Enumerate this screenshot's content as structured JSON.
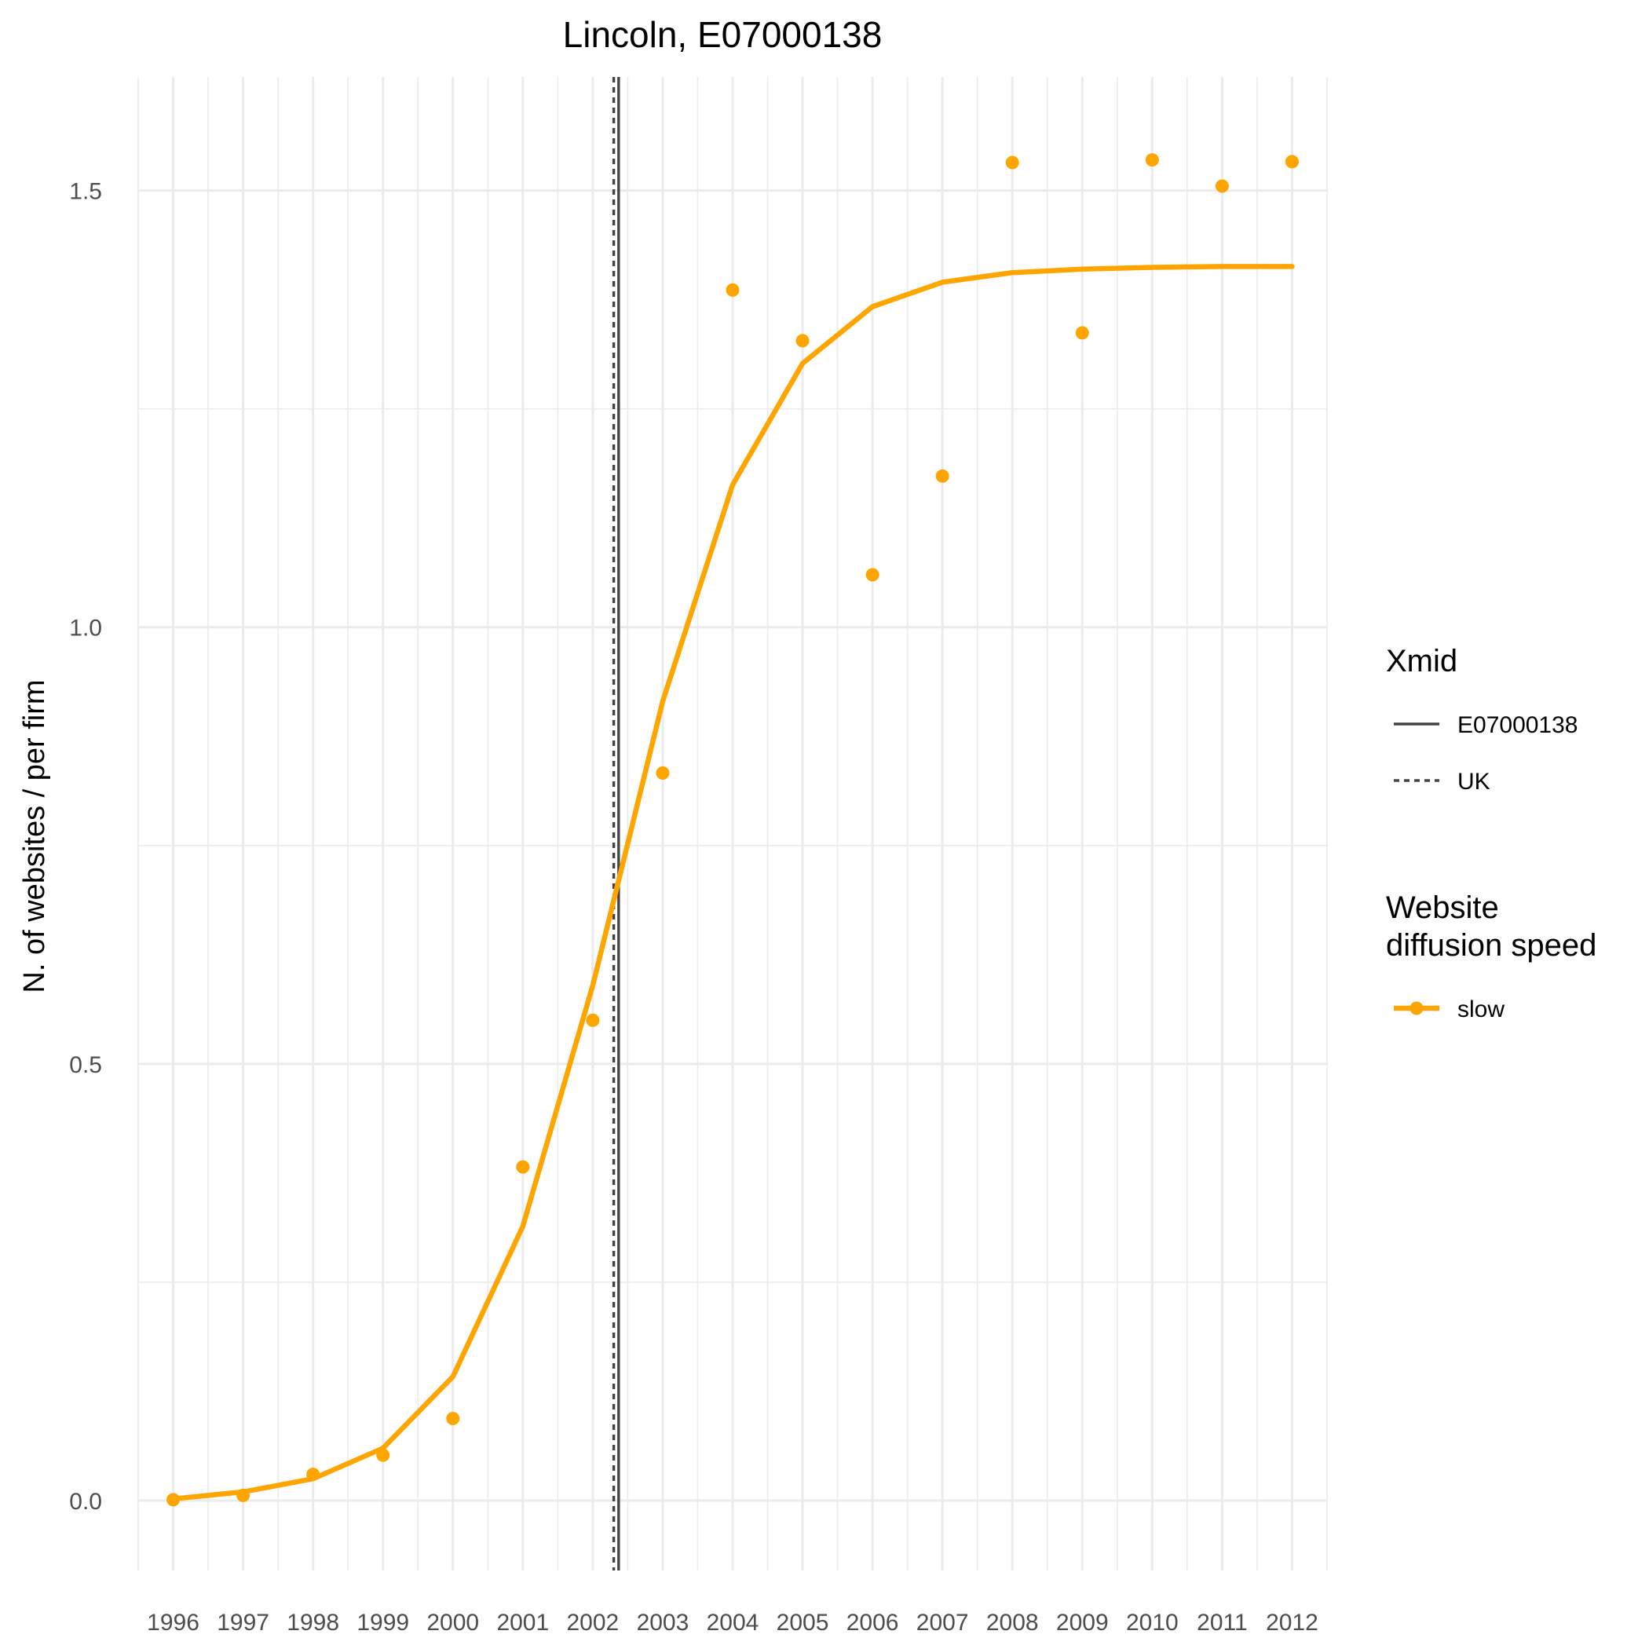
{
  "chart_data": {
    "type": "line",
    "title": "Lincoln, E07000138",
    "xlabel": "",
    "ylabel": "N. of websites / per firm",
    "x": [
      1996,
      1997,
      1998,
      1999,
      2000,
      2001,
      2002,
      2003,
      2004,
      2005,
      2006,
      2007,
      2008,
      2009,
      2010,
      2011,
      2012
    ],
    "x_tick_labels": [
      "1996",
      "1997",
      "1998",
      "1999",
      "2000",
      "2001",
      "2002",
      "2003",
      "2004",
      "2005",
      "2006",
      "2007",
      "2008",
      "2009",
      "2010",
      "2011",
      "2012"
    ],
    "y_ticks": [
      0.0,
      0.5,
      1.0,
      1.5
    ],
    "y_tick_labels": [
      "0.0",
      "0.5",
      "1.0",
      "1.5"
    ],
    "xlim": [
      1995.5,
      2012.5
    ],
    "ylim": [
      -0.08,
      1.63
    ],
    "grid": true,
    "series": [
      {
        "name": "slow",
        "kind": "fitted-line",
        "color": "#FFA500",
        "x": [
          1996,
          1997,
          1998,
          1999,
          2000,
          2001,
          2002,
          2002.33,
          2003,
          2004,
          2005,
          2006,
          2007,
          2008,
          2009,
          2010,
          2011,
          2012
        ],
        "values": [
          0.002,
          0.01,
          0.025,
          0.06,
          0.142,
          0.314,
          0.59,
          0.697,
          0.915,
          1.163,
          1.302,
          1.367,
          1.395,
          1.406,
          1.41,
          1.412,
          1.413,
          1.413
        ]
      },
      {
        "name": "slow",
        "kind": "observed-points",
        "color": "#FFA500",
        "x": [
          1996,
          1997,
          1998,
          1999,
          2000,
          2001,
          2002,
          2003,
          2004,
          2005,
          2006,
          2007,
          2008,
          2009,
          2010,
          2011,
          2012
        ],
        "values": [
          0.001,
          0.006,
          0.03,
          0.052,
          0.094,
          0.382,
          0.55,
          0.833,
          1.386,
          1.328,
          1.06,
          1.173,
          1.532,
          1.337,
          1.535,
          1.505,
          1.533
        ]
      }
    ],
    "vlines": [
      {
        "name": "E07000138",
        "x": 2002.37,
        "style": "solid",
        "color": "#444444"
      },
      {
        "name": "UK",
        "x": 2002.3,
        "style": "dotted",
        "color": "#444444"
      }
    ],
    "legend": {
      "placement": "right",
      "groups": [
        {
          "title": "Xmid",
          "title_lines": [
            "Xmid"
          ],
          "items": [
            {
              "label": "E07000138",
              "style": "solid"
            },
            {
              "label": "UK",
              "style": "dotted"
            }
          ]
        },
        {
          "title": "Website diffusion speed",
          "title_lines": [
            "Website",
            "diffusion speed"
          ],
          "items": [
            {
              "label": "slow",
              "style": "line-point",
              "color": "#FFA500"
            }
          ]
        }
      ]
    }
  }
}
